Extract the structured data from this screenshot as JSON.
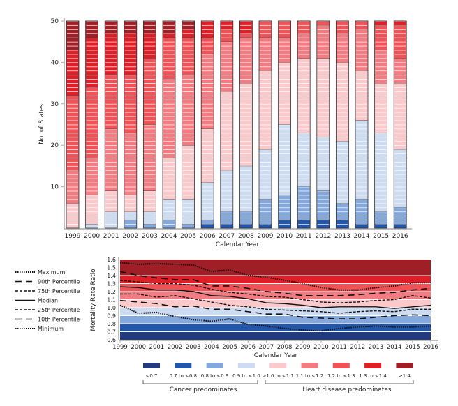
{
  "chart_data": [
    {
      "type": "bar",
      "stacked": true,
      "ylabel": "No. of States",
      "xlabel": "Calendar Year",
      "ylim": [
        0,
        50
      ],
      "yticks": [
        "10",
        "20",
        "30",
        "40",
        "50"
      ],
      "categories": [
        "1999",
        "2000",
        "2001",
        "2002",
        "2003",
        "2004",
        "2005",
        "2006",
        "2007",
        "2008",
        "2009",
        "2010",
        "2011",
        "2012",
        "2013",
        "2014",
        "2015",
        "2016"
      ],
      "series": [
        {
          "name": "<0.7",
          "color": "#243a7e",
          "values": [
            0,
            0,
            0,
            0,
            0,
            0,
            0,
            0,
            0,
            0,
            0,
            0,
            0,
            0,
            0,
            0,
            0,
            0
          ]
        },
        {
          "name": "0.7 to <0.8",
          "color": "#2356a8",
          "values": [
            0,
            0,
            0,
            0,
            0,
            0,
            0,
            1,
            1,
            1,
            1,
            2,
            2,
            2,
            2,
            1,
            1,
            1
          ]
        },
        {
          "name": "0.8 to <0.9",
          "color": "#84a8dc",
          "values": [
            0,
            0,
            0,
            2,
            1,
            2,
            1,
            1,
            3,
            3,
            6,
            6,
            8,
            7,
            4,
            6,
            3,
            4
          ]
        },
        {
          "name": "0.9 to <1.0",
          "color": "#cddcf0",
          "values": [
            0,
            1,
            4,
            2,
            3,
            5,
            6,
            9,
            10,
            11,
            12,
            17,
            13,
            13,
            15,
            19,
            19,
            14
          ]
        },
        {
          "name": ">1.0 to <1.1",
          "color": "#f9c9cc",
          "values": [
            6,
            7,
            5,
            4,
            5,
            10,
            13,
            13,
            19,
            20,
            19,
            15,
            18,
            19,
            19,
            12,
            12,
            16
          ]
        },
        {
          "name": "1.1 to <1.2",
          "color": "#f27c82",
          "values": [
            8,
            9,
            15,
            15,
            16,
            19,
            17,
            18,
            12,
            11,
            8,
            6,
            6,
            8,
            7,
            10,
            8,
            6
          ]
        },
        {
          "name": "1.2 to <1.3",
          "color": "#ef5257",
          "values": [
            18,
            17,
            13,
            14,
            16,
            10,
            9,
            4,
            3,
            1,
            4,
            4,
            3,
            1,
            3,
            2,
            6,
            8
          ]
        },
        {
          "name": "1.3 to <1.4",
          "color": "#df1f27",
          "values": [
            11,
            12,
            10,
            10,
            6,
            1,
            2,
            4,
            2,
            3,
            0,
            0,
            0,
            0,
            0,
            0,
            1,
            1
          ]
        },
        {
          "name": "≥1.4",
          "color": "#a01e26",
          "values": [
            7,
            4,
            3,
            3,
            3,
            3,
            2,
            0,
            0,
            0,
            0,
            0,
            0,
            0,
            0,
            0,
            0,
            0
          ]
        }
      ]
    },
    {
      "type": "line",
      "ylabel": "Mortality Rate Ratio",
      "xlabel": "Calendar Year",
      "ylim": [
        0.6,
        1.6
      ],
      "yticks": [
        "0.6",
        "0.7",
        "0.8",
        "0.9",
        "1.0",
        "1.1",
        "1.2",
        "1.3",
        "1.4",
        "1.5",
        "1.6"
      ],
      "x": [
        "1999",
        "2000",
        "2001",
        "2002",
        "2003",
        "2004",
        "2005",
        "2006",
        "2007",
        "2008",
        "2009",
        "2010",
        "2011",
        "2012",
        "2013",
        "2014",
        "2015",
        "2016"
      ],
      "series": [
        {
          "name": "Maximum",
          "style": "dotted",
          "values": [
            1.56,
            1.54,
            1.55,
            1.54,
            1.53,
            1.45,
            1.47,
            1.4,
            1.38,
            1.34,
            1.3,
            1.25,
            1.22,
            1.22,
            1.25,
            1.27,
            1.31,
            1.31
          ]
        },
        {
          "name": "90th Percentile",
          "style": "long-dash",
          "values": [
            1.45,
            1.4,
            1.37,
            1.35,
            1.35,
            1.27,
            1.27,
            1.24,
            1.2,
            1.18,
            1.15,
            1.15,
            1.15,
            1.16,
            1.18,
            1.19,
            1.22,
            1.24
          ]
        },
        {
          "name": "75th Percentile",
          "style": "short-dash",
          "values": [
            1.34,
            1.32,
            1.3,
            1.3,
            1.28,
            1.23,
            1.19,
            1.17,
            1.14,
            1.13,
            1.1,
            1.07,
            1.06,
            1.07,
            1.09,
            1.1,
            1.15,
            1.12
          ]
        },
        {
          "name": "Median",
          "style": "solid",
          "values": [
            1.26,
            1.25,
            1.22,
            1.22,
            1.2,
            1.15,
            1.14,
            1.11,
            1.06,
            1.05,
            1.03,
            1.0,
            1.01,
            1.01,
            1.01,
            0.99,
            1.01,
            1.03
          ]
        },
        {
          "name": "25th Percentile",
          "style": "short-dash",
          "values": [
            1.17,
            1.17,
            1.13,
            1.15,
            1.11,
            1.07,
            1.03,
            1.01,
            0.98,
            0.97,
            0.96,
            0.95,
            0.93,
            0.95,
            0.96,
            0.95,
            0.98,
            0.98
          ]
        },
        {
          "name": "10th Percentile",
          "style": "long-dash",
          "values": [
            1.09,
            1.07,
            1.05,
            1.01,
            1.02,
            0.98,
            0.98,
            0.95,
            0.92,
            0.92,
            0.88,
            0.87,
            0.86,
            0.86,
            0.88,
            0.9,
            0.91,
            0.9
          ]
        },
        {
          "name": "Minimum",
          "style": "dotted",
          "values": [
            1.03,
            0.93,
            0.94,
            0.89,
            0.85,
            0.83,
            0.86,
            0.79,
            0.77,
            0.74,
            0.72,
            0.71,
            0.74,
            0.76,
            0.77,
            0.76,
            0.76,
            0.77
          ]
        }
      ]
    }
  ],
  "legend": {
    "items": [
      {
        "label": "<0.7",
        "color": "#243a7e"
      },
      {
        "label": "0.7 to <0.8",
        "color": "#2356a8"
      },
      {
        "label": "0.8 to <0.9",
        "color": "#84a8dc"
      },
      {
        "label": "0.9 to <1.0",
        "color": "#cddcf0"
      },
      {
        "label": ">1.0 to <1.1",
        "color": "#f9c9cc"
      },
      {
        "label": "1.1 to <1.2",
        "color": "#f27c82"
      },
      {
        "label": "1.2 to <1.3",
        "color": "#ef5257"
      },
      {
        "label": "1.3 to <1.4",
        "color": "#df1f27"
      },
      {
        "label": "≥1.4",
        "color": "#a01e26"
      }
    ],
    "cancer_label": "Cancer predominates",
    "heart_label": "Heart disease predominates"
  }
}
